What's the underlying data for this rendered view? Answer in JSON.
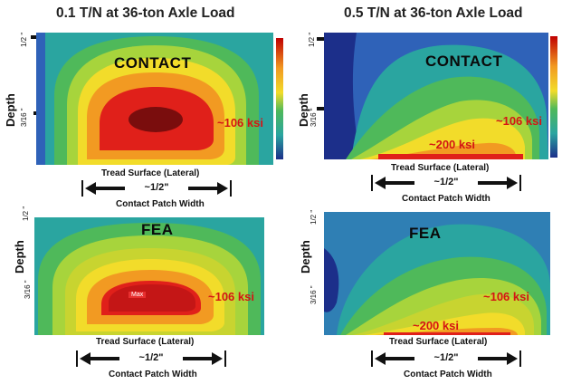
{
  "titles": {
    "left": "0.1 T/N at 36-ton Axle Load",
    "right": "0.5 T/N at 36-ton Axle Load"
  },
  "panels": {
    "top_left": {
      "label": "CONTACT",
      "stress": "~106 ksi"
    },
    "top_right": {
      "label": "CONTACT",
      "stress_mid": "~106 ksi",
      "stress_low": "~200 ksi"
    },
    "bottom_left": {
      "label": "FEA",
      "stress": "~106 ksi",
      "max_tag": "Max"
    },
    "bottom_right": {
      "label": "FEA",
      "stress_mid": "~106 ksi",
      "stress_low": "~200 ksi"
    }
  },
  "axis": {
    "depth_label": "Depth",
    "tick_top": "1/2 \"",
    "tick_mid": "3/16 \""
  },
  "dimension": {
    "surface_label": "Tread Surface (Lateral)",
    "width_value": "~1/2\"",
    "width_label": "Contact Patch Width"
  },
  "colors": {
    "dark_red": "#7a0d0d",
    "red": "#e0201a",
    "orange": "#f29a22",
    "yellow": "#f2dc2a",
    "light_green": "#a7d43c",
    "green": "#4fb95a",
    "teal": "#2aa5a0",
    "blue": "#2f62b8",
    "navy": "#1c2f8a",
    "stress_text": "#d41414"
  }
}
